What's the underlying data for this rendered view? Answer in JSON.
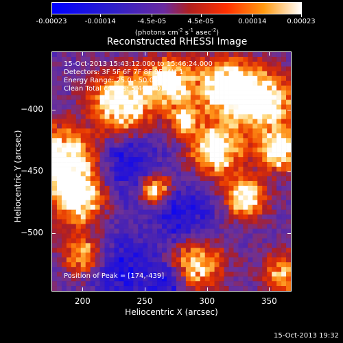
{
  "colorbar": {
    "tick_labels": [
      "-0.00023",
      "-0.00014",
      "-4.5e-05",
      "4.5e-05",
      "0.00014",
      "0.00023"
    ],
    "tick_values": [
      -0.00023,
      -0.00014,
      -4.5e-05,
      4.5e-05,
      0.00014,
      0.00023
    ],
    "units_main": "(photons cm",
    "units_sup1": "-2",
    "units_mid1": " s",
    "units_sup2": "-1",
    "units_mid2": " asec",
    "units_sup3": "-2",
    "units_end": ")",
    "range": [
      -0.00023,
      0.00023
    ]
  },
  "chart_data": {
    "type": "heatmap",
    "title": "Reconstructed RHESSI Image",
    "xlabel": "Heliocentric X (arcsec)",
    "ylabel": "Heliocentric Y (arcsec)",
    "xlim": [
      175,
      368
    ],
    "ylim": [
      -547,
      -353
    ],
    "x_ticks": [
      200,
      250,
      300,
      350
    ],
    "y_ticks": [
      -400,
      -450,
      -500
    ],
    "x_tick_labels": [
      "200",
      "250",
      "300",
      "350"
    ],
    "y_tick_labels": [
      "-400",
      "-450",
      "-500"
    ],
    "peak": [
      174,
      -439
    ],
    "info_lines": [
      "15-Oct-2013 15:43:12.000 to 15:46:24.000",
      "Detectors: 3F 5F 6F 7F 8F 9F, Att 1",
      "Energy Range: 25.0 - 50.0 keV",
      "Clean    Total counts: 5.46E+03"
    ],
    "peak_text": "Position of Peak = [174,-439]"
  },
  "footer": "15-Oct-2013 19:32"
}
